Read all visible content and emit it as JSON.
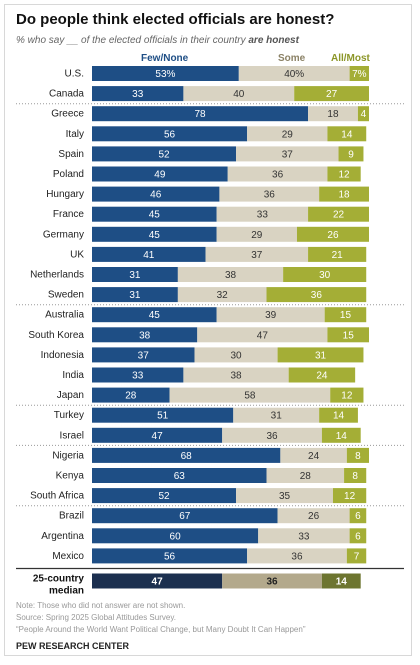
{
  "title": "Do people think elected officials are honest?",
  "subtitle": {
    "prefix": "% who say __ of the elected officials in their country",
    "emphasis": "are honest"
  },
  "legend": {
    "few_none": "Few/None",
    "some": "Some",
    "all_most": "All/Most"
  },
  "colors": {
    "few_none": "#1e4e85",
    "some": "#d9d3c2",
    "all_most": "#a4ae36",
    "few_none_text": "#1e4e85",
    "some_text": "#8b8266",
    "all_most_text": "#8c9628",
    "median_few_none": "#1b2f4f",
    "median_some": "#b3a98c",
    "median_all_most": "#6d7530"
  },
  "chart_data": {
    "type": "bar",
    "stacked": true,
    "orientation": "horizontal",
    "categories": [
      "U.S.",
      "Canada",
      "Greece",
      "Italy",
      "Spain",
      "Poland",
      "Hungary",
      "France",
      "Germany",
      "UK",
      "Netherlands",
      "Sweden",
      "Australia",
      "South Korea",
      "Indonesia",
      "India",
      "Japan",
      "Turkey",
      "Israel",
      "Nigeria",
      "Kenya",
      "South Africa",
      "Brazil",
      "Argentina",
      "Mexico"
    ],
    "value_labels": [
      [
        "53%",
        "40%",
        "7%"
      ],
      [
        "33",
        "40",
        "27"
      ],
      [
        "78",
        "18",
        "4"
      ],
      [
        "56",
        "29",
        "14"
      ],
      [
        "52",
        "37",
        "9"
      ],
      [
        "49",
        "36",
        "12"
      ],
      [
        "46",
        "36",
        "18"
      ],
      [
        "45",
        "33",
        "22"
      ],
      [
        "45",
        "29",
        "26"
      ],
      [
        "41",
        "37",
        "21"
      ],
      [
        "31",
        "38",
        "30"
      ],
      [
        "31",
        "32",
        "36"
      ],
      [
        "45",
        "39",
        "15"
      ],
      [
        "38",
        "47",
        "15"
      ],
      [
        "37",
        "30",
        "31"
      ],
      [
        "33",
        "38",
        "24"
      ],
      [
        "28",
        "58",
        "12"
      ],
      [
        "51",
        "31",
        "14"
      ],
      [
        "47",
        "36",
        "14"
      ],
      [
        "68",
        "24",
        "8"
      ],
      [
        "63",
        "28",
        "8"
      ],
      [
        "52",
        "35",
        "12"
      ],
      [
        "67",
        "26",
        "6"
      ],
      [
        "60",
        "33",
        "6"
      ],
      [
        "56",
        "36",
        "7"
      ]
    ],
    "series": [
      {
        "name": "Few/None",
        "values": [
          53,
          33,
          78,
          56,
          52,
          49,
          46,
          45,
          45,
          41,
          31,
          31,
          45,
          38,
          37,
          33,
          28,
          51,
          47,
          68,
          63,
          52,
          67,
          60,
          56
        ]
      },
      {
        "name": "Some",
        "values": [
          40,
          40,
          18,
          29,
          37,
          36,
          36,
          33,
          29,
          37,
          38,
          32,
          39,
          47,
          30,
          38,
          58,
          31,
          36,
          24,
          28,
          35,
          26,
          33,
          36
        ]
      },
      {
        "name": "All/Most",
        "values": [
          7,
          27,
          4,
          14,
          9,
          12,
          18,
          22,
          26,
          21,
          30,
          36,
          15,
          15,
          31,
          24,
          12,
          14,
          14,
          8,
          8,
          12,
          6,
          6,
          7
        ]
      }
    ],
    "groups": [
      [
        0,
        1
      ],
      [
        2,
        11
      ],
      [
        12,
        16
      ],
      [
        17,
        18
      ],
      [
        19,
        21
      ],
      [
        22,
        24
      ]
    ],
    "median": {
      "label_line1": "25-country",
      "label_line2": "median",
      "values": [
        47,
        36,
        14
      ]
    },
    "xlim": [
      0,
      100
    ]
  },
  "notes": [
    "Note: Those who did not answer are not shown.",
    "Source: Spring 2025 Global Attitudes Survey.",
    "“People Around the World Want Political Change, but Many Doubt It Can Happen”"
  ],
  "footer": "PEW RESEARCH CENTER"
}
